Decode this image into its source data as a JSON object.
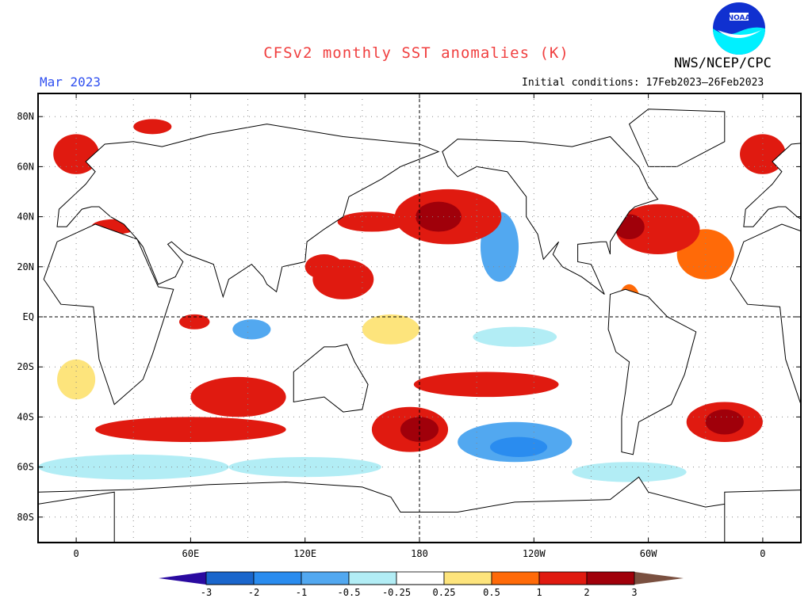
{
  "header": {
    "title": "CFSv2 monthly SST anomalies (K)",
    "month": "Mar 2023",
    "agency": "NWS/NCEP/CPC",
    "initial_conditions": "Initial conditions: 17Feb2023–26Feb2023",
    "logo_text": "NOAA"
  },
  "map": {
    "projection": "equirectangular",
    "lon_range": [
      -20,
      380
    ],
    "lat_range": [
      -90,
      90
    ],
    "lat_ticks": [
      {
        "lat": 80,
        "label": "80N"
      },
      {
        "lat": 60,
        "label": "60N"
      },
      {
        "lat": 40,
        "label": "40N"
      },
      {
        "lat": 20,
        "label": "20N"
      },
      {
        "lat": 0,
        "label": "EQ"
      },
      {
        "lat": -20,
        "label": "20S"
      },
      {
        "lat": -40,
        "label": "40S"
      },
      {
        "lat": -60,
        "label": "60S"
      },
      {
        "lat": -80,
        "label": "80S"
      }
    ],
    "lon_ticks": [
      {
        "lon": 0,
        "label": "0"
      },
      {
        "lon": 60,
        "label": "60E"
      },
      {
        "lon": 120,
        "label": "120E"
      },
      {
        "lon": 180,
        "label": "180"
      },
      {
        "lon": 240,
        "label": "120W"
      },
      {
        "lon": 300,
        "label": "60W"
      },
      {
        "lon": 360,
        "label": "0"
      }
    ],
    "anomaly_regions": [
      {
        "lon": 195,
        "lat": 40,
        "rlon": 28,
        "rlat": 11,
        "value": 1.5
      },
      {
        "lon": 190,
        "lat": 40,
        "rlon": 12,
        "rlat": 6,
        "value": 2.5
      },
      {
        "lon": 222,
        "lat": 28,
        "rlon": 10,
        "rlat": 14,
        "value": -0.7
      },
      {
        "lon": 215,
        "lat": -27,
        "rlon": 38,
        "rlat": 5,
        "value": 1.2
      },
      {
        "lon": 230,
        "lat": -50,
        "rlon": 30,
        "rlat": 8,
        "value": -1
      },
      {
        "lon": 232,
        "lat": -52,
        "rlon": 15,
        "rlat": 4,
        "value": -1.5
      },
      {
        "lon": 175,
        "lat": -45,
        "rlon": 20,
        "rlat": 9,
        "value": 1.5
      },
      {
        "lon": 180,
        "lat": -45,
        "rlon": 10,
        "rlat": 5,
        "value": 2.5
      },
      {
        "lon": 85,
        "lat": -32,
        "rlon": 25,
        "rlat": 8,
        "value": 1
      },
      {
        "lon": 60,
        "lat": -45,
        "rlon": 50,
        "rlat": 5,
        "value": 1.5
      },
      {
        "lon": 340,
        "lat": -42,
        "rlon": 20,
        "rlat": 8,
        "value": 1.5
      },
      {
        "lon": 340,
        "lat": -42,
        "rlon": 10,
        "rlat": 5,
        "value": 2.5
      },
      {
        "lon": 305,
        "lat": 35,
        "rlon": 22,
        "rlat": 10,
        "value": 1.2
      },
      {
        "lon": 290,
        "lat": 36,
        "rlon": 8,
        "rlat": 5,
        "value": 2.5
      },
      {
        "lon": 330,
        "lat": 25,
        "rlon": 15,
        "rlat": 10,
        "value": 0.6
      },
      {
        "lon": 140,
        "lat": 15,
        "rlon": 16,
        "rlat": 8,
        "value": 1
      },
      {
        "lon": 130,
        "lat": 20,
        "rlon": 10,
        "rlat": 5,
        "value": 1.5
      },
      {
        "lon": 155,
        "lat": 38,
        "rlon": 18,
        "rlat": 4,
        "value": 1.5
      },
      {
        "lon": 20,
        "lat": 36,
        "rlon": 12,
        "rlat": 3,
        "value": 1.5
      },
      {
        "lon": 0,
        "lat": 65,
        "rlon": 12,
        "rlat": 8,
        "value": 1
      },
      {
        "lon": 360,
        "lat": 65,
        "rlon": 12,
        "rlat": 8,
        "value": 1
      },
      {
        "lon": 40,
        "lat": 76,
        "rlon": 10,
        "rlat": 3,
        "value": 1.5
      },
      {
        "lon": 92,
        "lat": -5,
        "rlon": 10,
        "rlat": 4,
        "value": -0.6
      },
      {
        "lon": 62,
        "lat": -2,
        "rlon": 8,
        "rlat": 3,
        "value": 1
      },
      {
        "lon": 230,
        "lat": -8,
        "rlon": 22,
        "rlat": 4,
        "value": -0.3
      },
      {
        "lon": 30,
        "lat": -60,
        "rlon": 50,
        "rlat": 5,
        "value": -0.4
      },
      {
        "lon": 120,
        "lat": -60,
        "rlon": 40,
        "rlat": 4,
        "value": -0.4
      },
      {
        "lon": 290,
        "lat": -62,
        "rlon": 30,
        "rlat": 4,
        "value": -0.4
      },
      {
        "lon": 0,
        "lat": -25,
        "rlon": 10,
        "rlat": 8,
        "value": 0.4
      },
      {
        "lon": 290,
        "lat": 5,
        "rlon": 6,
        "rlat": 8,
        "value": 0.6
      },
      {
        "lon": 165,
        "lat": -5,
        "rlon": 15,
        "rlat": 6,
        "value": 0.3
      }
    ]
  },
  "colorbar": {
    "labels": [
      "-3",
      "-2",
      "-1",
      "-0.5",
      "-0.25",
      "0.25",
      "0.5",
      "1",
      "2",
      "3"
    ],
    "under_color": "#2a0aa0",
    "over_color": "#7a5040",
    "colors": [
      "#1a66cc",
      "#2a8cef",
      "#52a8f0",
      "#b2edf5",
      "#ffffff",
      "#fde47c",
      "#ff6a08",
      "#e01a10",
      "#a0000a"
    ]
  }
}
